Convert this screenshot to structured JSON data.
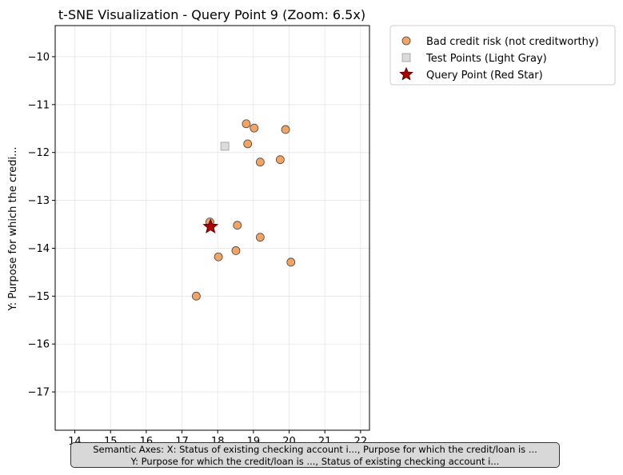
{
  "chart_data": {
    "type": "scatter",
    "title": "t-SNE Visualization - Query Point 9 (Zoom: 6.5x)",
    "xlabel": "",
    "ylabel": "Y: Purpose for which the credi...",
    "xlim": [
      13.45,
      22.25
    ],
    "ylim": [
      -17.8,
      -9.35
    ],
    "xticks": [
      14,
      15,
      16,
      17,
      18,
      19,
      20,
      21,
      22
    ],
    "yticks": [
      -10,
      -11,
      -12,
      -13,
      -14,
      -15,
      -16,
      -17
    ],
    "xtick_labels": [
      "14",
      "15",
      "16",
      "17",
      "18",
      "19",
      "20",
      "21",
      "22"
    ],
    "ytick_labels": [
      "−10",
      "−11",
      "−12",
      "−13",
      "−14",
      "−15",
      "−16",
      "−17"
    ],
    "grid": true,
    "legend_position": "outside-upper-right",
    "series": [
      {
        "name": "Bad credit risk (not creditworthy)",
        "marker": "circle",
        "color": "#f4a460",
        "points": [
          {
            "x": 18.8,
            "y": -11.4
          },
          {
            "x": 19.02,
            "y": -11.49
          },
          {
            "x": 19.9,
            "y": -11.52
          },
          {
            "x": 18.84,
            "y": -11.82
          },
          {
            "x": 19.75,
            "y": -12.15
          },
          {
            "x": 19.19,
            "y": -12.2
          },
          {
            "x": 17.78,
            "y": -13.45
          },
          {
            "x": 18.55,
            "y": -13.52
          },
          {
            "x": 19.19,
            "y": -13.77
          },
          {
            "x": 18.51,
            "y": -14.05
          },
          {
            "x": 18.02,
            "y": -14.18
          },
          {
            "x": 20.05,
            "y": -14.29
          },
          {
            "x": 17.4,
            "y": -15.0
          }
        ]
      },
      {
        "name": "Test Points (Light Gray)",
        "marker": "square",
        "color": "#dcdcdc",
        "points": [
          {
            "x": 18.2,
            "y": -11.87
          }
        ]
      },
      {
        "name": "Query Point (Red Star)",
        "marker": "star",
        "color": "#b00000",
        "points": [
          {
            "x": 17.8,
            "y": -13.55
          }
        ]
      }
    ]
  },
  "annotation": {
    "line1": "Semantic Axes: X: Status of existing checking account i..., Purpose for which the credit/loan is ...",
    "line2": "Y: Purpose for which the credit/loan is ..., Status of existing checking account i..."
  }
}
